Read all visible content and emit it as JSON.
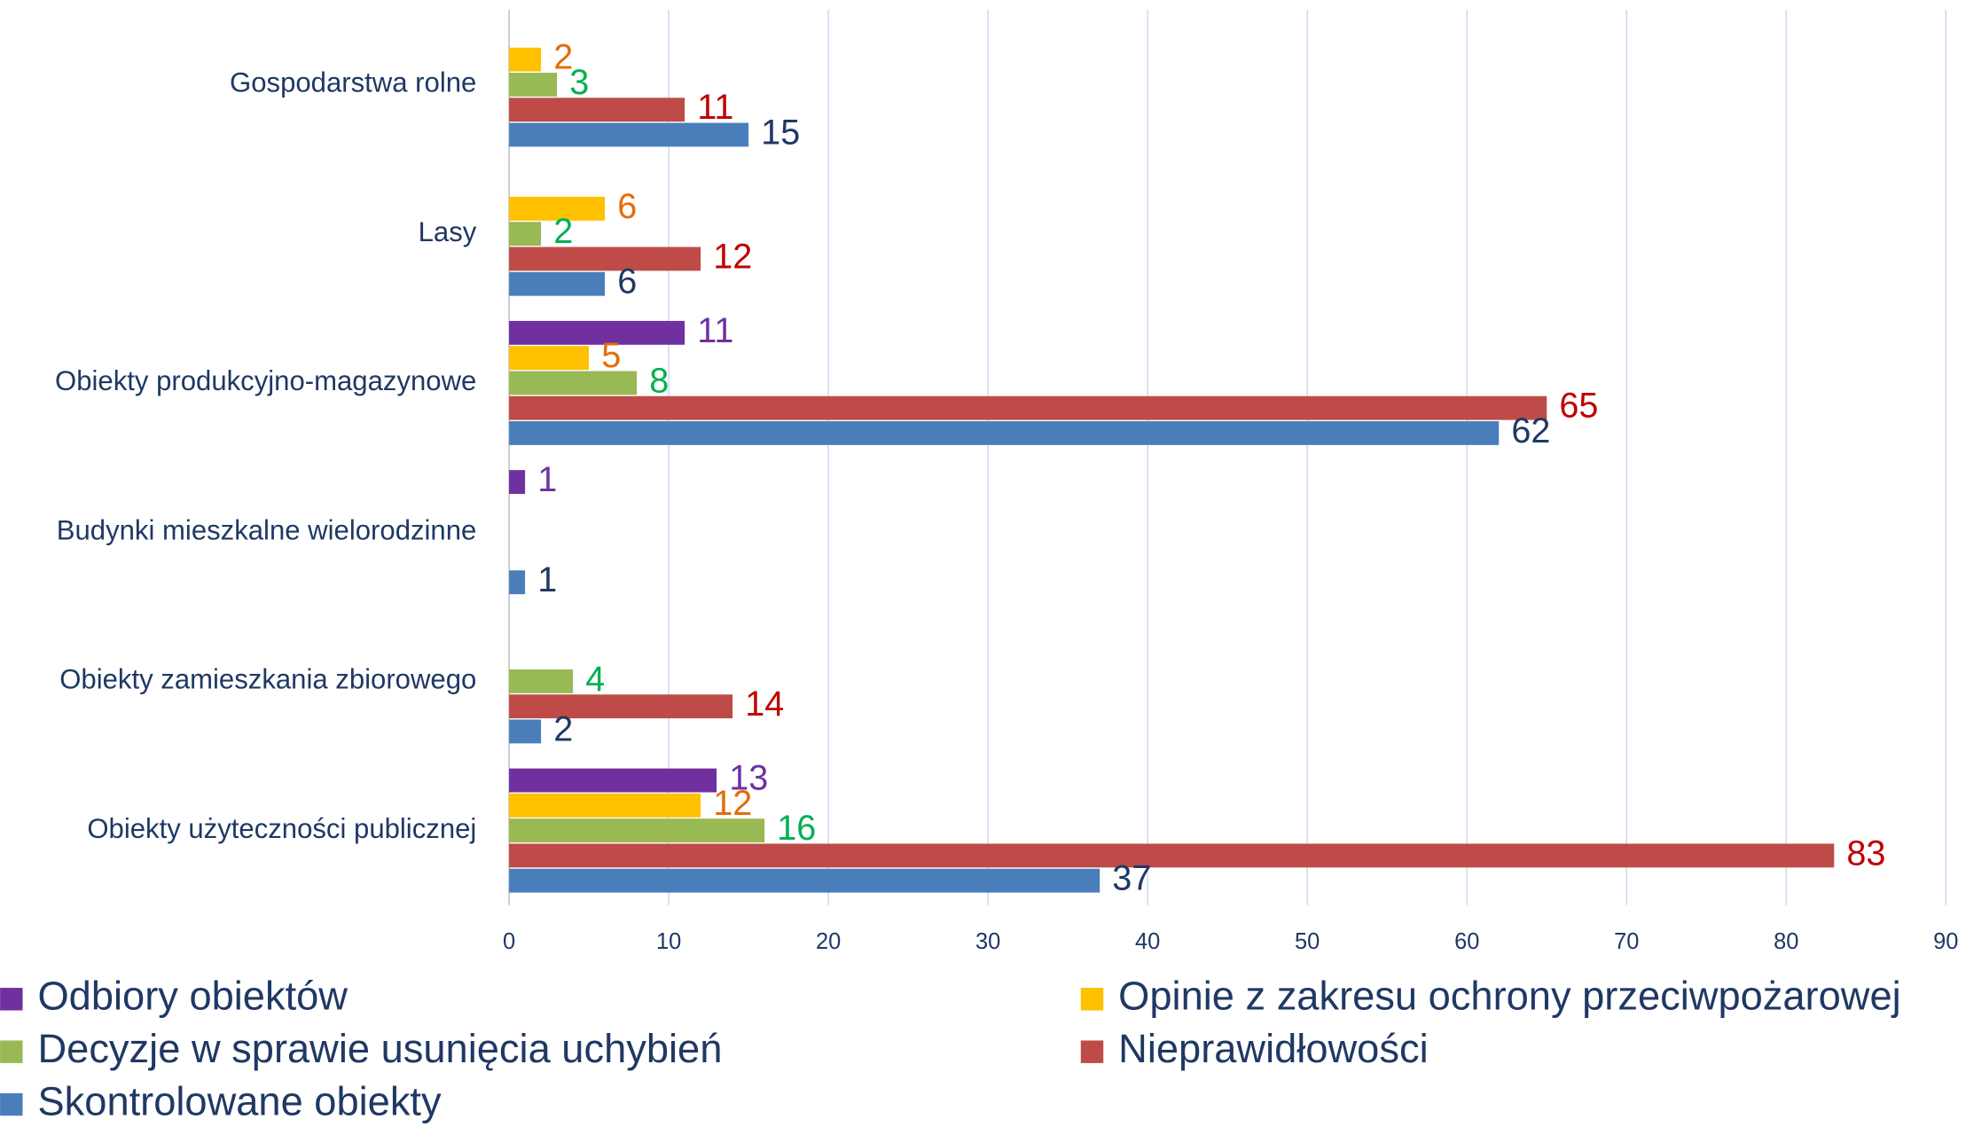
{
  "chart_data": {
    "type": "barh",
    "categories": [
      "Gospodarstwa rolne",
      "Lasy",
      "Obiekty produkcyjno-magazynowe",
      "Budynki mieszkalne wielorodzinne",
      "Obiekty zamieszkania zbiorowego",
      "Obiekty użyteczności publicznej"
    ],
    "series": [
      {
        "name": "Odbiory obiektów",
        "color": "#7030a0",
        "label_color": "#7030a0",
        "values": [
          null,
          null,
          11,
          1,
          null,
          13
        ]
      },
      {
        "name": "Opinie z zakresu ochrony przeciwpożarowej",
        "color": "#ffc000",
        "label_color": "#e46c0a",
        "values": [
          2,
          6,
          5,
          null,
          null,
          12
        ]
      },
      {
        "name": "Decyzje w sprawie usunięcia uchybień",
        "color": "#98b954",
        "label_color": "#00b050",
        "values": [
          3,
          2,
          8,
          null,
          4,
          16
        ]
      },
      {
        "name": "Nieprawidłowości",
        "color": "#be4b48",
        "label_color": "#c00000",
        "values": [
          11,
          12,
          65,
          null,
          14,
          83
        ]
      },
      {
        "name": "Skontrolowane obiekty",
        "color": "#4a7ebb",
        "label_color": "#1f3864",
        "values": [
          15,
          6,
          62,
          1,
          2,
          37
        ]
      }
    ],
    "xlim": [
      0,
      90
    ],
    "xticks": [
      0,
      10,
      20,
      30,
      40,
      50,
      60,
      70,
      80,
      90
    ],
    "grid": true
  }
}
